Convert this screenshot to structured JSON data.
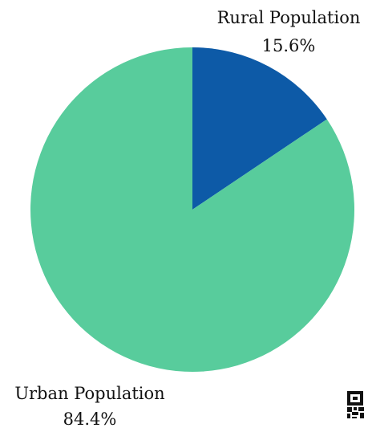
{
  "chart_data": {
    "type": "pie",
    "slices": [
      {
        "label": "Rural Population",
        "percent_label": "15.6%",
        "value": 15.6,
        "color": "#0d5aa7"
      },
      {
        "label": "Urban Population",
        "percent_label": "84.4%",
        "value": 84.4,
        "color": "#58cc9c"
      }
    ],
    "start_angle_degrees": 0,
    "direction": "clockwise"
  },
  "icons": {
    "corner": "qr-code-icon"
  }
}
